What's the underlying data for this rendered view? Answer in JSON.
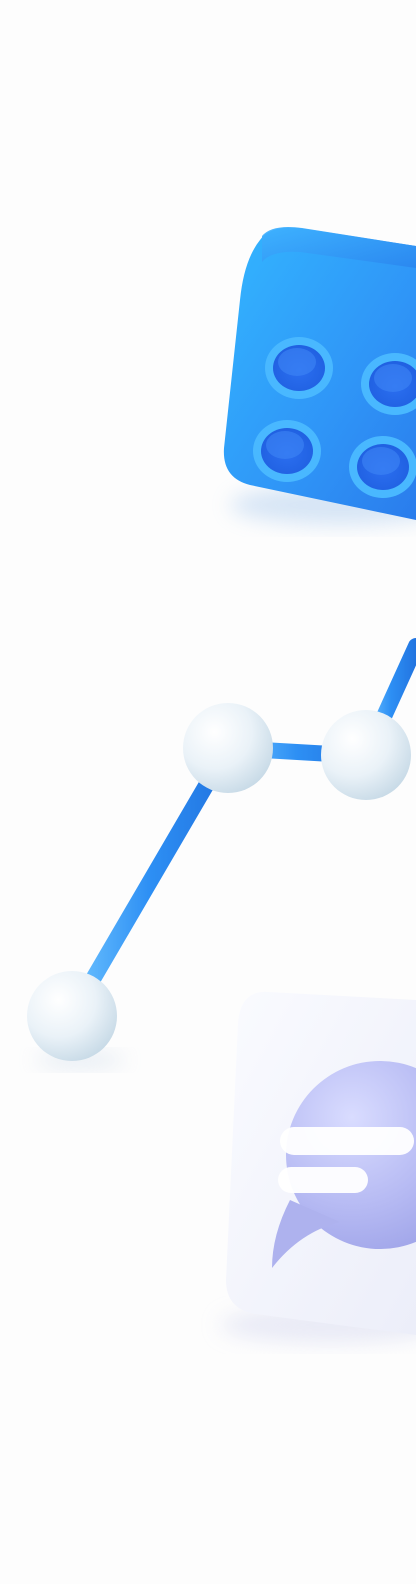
{
  "scene": {
    "background_color": "#fdfdfd",
    "objects": [
      {
        "name": "building-block",
        "icon": "lego-brick-icon",
        "color": "#2f8cf5"
      },
      {
        "name": "line-graph",
        "icon": "line-graph-icon",
        "color": "#2d91f5",
        "node_color": "#e8f0f6"
      },
      {
        "name": "chat-card",
        "icon": "chat-bubble-icon",
        "color": "#b9bdf2"
      }
    ]
  }
}
